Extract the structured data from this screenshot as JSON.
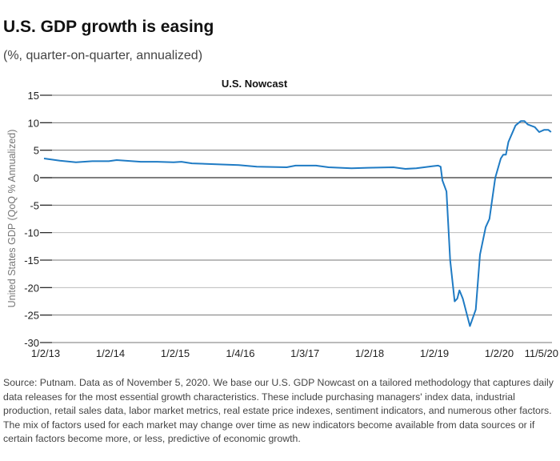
{
  "title": "U.S. GDP growth is easing",
  "subtitle": "(%, quarter-on-quarter, annualized)",
  "source": "Source: Putnam. Data as of November 5, 2020. We base our U.S. GDP Nowcast on a tailored methodology that captures daily data releases for the most essential growth characteristics. These include purchasing managers' index data, industrial production, retail sales data, labor market metrics, real estate price indexes, sentiment indicators, and numerous other factors. The mix of factors used for each market may change over time as new indicators become available from data sources or if certain factors become more, or less, predictive of economic growth.",
  "chart_data": {
    "type": "line",
    "title": "U.S. Nowcast",
    "xlabel": "",
    "ylabel": "United States GDP (QoQ % Annualized)",
    "ylim": [
      -30,
      15
    ],
    "yticks": [
      15,
      10,
      5,
      0,
      -5,
      -10,
      -15,
      -20,
      -25,
      -30
    ],
    "xticks": [
      {
        "date": "2013-01-02",
        "label": "1/2/13"
      },
      {
        "date": "2014-01-02",
        "label": "1/2/14"
      },
      {
        "date": "2015-01-02",
        "label": "1/2/15"
      },
      {
        "date": "2016-01-04",
        "label": "1/4/16"
      },
      {
        "date": "2017-01-03",
        "label": "1/3/17"
      },
      {
        "date": "2018-01-02",
        "label": "1/2/18"
      },
      {
        "date": "2019-01-02",
        "label": "1/2/19"
      },
      {
        "date": "2020-01-02",
        "label": "1/2/20"
      },
      {
        "date": "2020-11-05",
        "label": "11/5/20"
      }
    ],
    "grid": true,
    "color": "#1f7bc4",
    "series": [
      {
        "points": [
          [
            "2013-01-02",
            3.5
          ],
          [
            "2013-04-01",
            3.1
          ],
          [
            "2013-07-01",
            2.8
          ],
          [
            "2013-10-01",
            3.0
          ],
          [
            "2014-01-02",
            3.0
          ],
          [
            "2014-02-15",
            3.2
          ],
          [
            "2014-07-01",
            2.9
          ],
          [
            "2014-10-01",
            2.9
          ],
          [
            "2015-01-02",
            2.8
          ],
          [
            "2015-02-15",
            2.9
          ],
          [
            "2015-04-15",
            2.6
          ],
          [
            "2015-10-01",
            2.4
          ],
          [
            "2016-01-04",
            2.3
          ],
          [
            "2016-04-15",
            2.0
          ],
          [
            "2016-10-01",
            1.9
          ],
          [
            "2016-11-20",
            2.2
          ],
          [
            "2017-03-15",
            2.2
          ],
          [
            "2017-05-25",
            1.9
          ],
          [
            "2017-10-01",
            1.7
          ],
          [
            "2018-01-02",
            1.8
          ],
          [
            "2018-05-25",
            1.9
          ],
          [
            "2018-08-01",
            1.6
          ],
          [
            "2018-10-01",
            1.7
          ],
          [
            "2019-01-02",
            2.1
          ],
          [
            "2019-02-01",
            2.2
          ],
          [
            "2019-02-15",
            2.0
          ],
          [
            "2019-02-25",
            -0.5
          ],
          [
            "2019-03-20",
            -2.5
          ],
          [
            "2019-04-10",
            -15
          ],
          [
            "2019-05-05",
            -22.5
          ],
          [
            "2019-05-20",
            -22
          ],
          [
            "2019-06-01",
            -20.5
          ],
          [
            "2019-06-20",
            -22
          ],
          [
            "2019-07-30",
            -27
          ],
          [
            "2019-09-01",
            -24
          ],
          [
            "2019-09-25",
            -14
          ],
          [
            "2019-10-27",
            -9
          ],
          [
            "2019-11-17",
            -7.5
          ],
          [
            "2019-12-20",
            0
          ],
          [
            "2020-01-20",
            3.5
          ],
          [
            "2020-02-03",
            4.2
          ],
          [
            "2020-02-18",
            4.2
          ],
          [
            "2020-03-03",
            6.5
          ],
          [
            "2020-04-12",
            9.5
          ],
          [
            "2020-05-12",
            10.3
          ],
          [
            "2020-06-02",
            10.3
          ],
          [
            "2020-06-20",
            9.7
          ],
          [
            "2020-07-30",
            9.2
          ],
          [
            "2020-08-24",
            8.3
          ],
          [
            "2020-09-20",
            8.7
          ],
          [
            "2020-10-15",
            8.7
          ],
          [
            "2020-10-30",
            8.3
          ]
        ]
      }
    ]
  }
}
